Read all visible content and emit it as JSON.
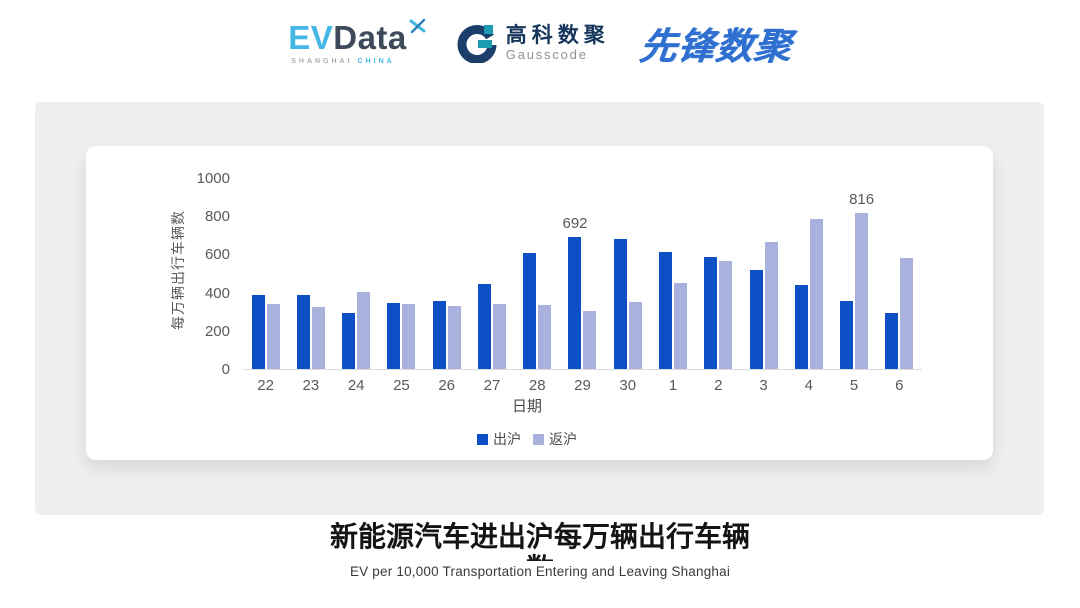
{
  "header": {
    "evdata": {
      "ev": "EV",
      "data": "Data",
      "sub1": "SHANGHAI",
      "sub2": "CHINA"
    },
    "gausscode": {
      "cn": "高科数聚",
      "en": "Gausscode"
    },
    "xianfeng": {
      "text": "先锋数聚"
    }
  },
  "chart_data": {
    "type": "bar",
    "title": "新能源汽车进出沪每万辆出行车辆数",
    "categories": [
      "22",
      "23",
      "24",
      "25",
      "26",
      "27",
      "28",
      "29",
      "30",
      "1",
      "2",
      "3",
      "4",
      "5",
      "6"
    ],
    "series": [
      {
        "name": "出沪",
        "color": "#0D4FC4",
        "values": [
          390,
          385,
          295,
          347,
          357,
          447,
          608,
          692,
          683,
          614,
          589,
          517,
          441,
          358,
          293
        ]
      },
      {
        "name": "返沪",
        "color": "#A9B2DC",
        "values": [
          343,
          326,
          405,
          339,
          328,
          342,
          334,
          306,
          349,
          451,
          566,
          665,
          788,
          816,
          583
        ]
      }
    ],
    "annotations": [
      {
        "series": "出沪",
        "category": "29",
        "text": "692"
      },
      {
        "series": "返沪",
        "category": "5",
        "text": "816"
      }
    ],
    "xlabel": "日期",
    "ylabel": "每万辆出行车辆数",
    "ylim": [
      0,
      1000
    ],
    "yticks": [
      0,
      200,
      400,
      600,
      800,
      1000
    ],
    "legend_position": "bottom",
    "grid": false
  },
  "footer": {
    "title_line1": "新能源汽车进出沪每万辆出行车辆",
    "title_line2": "数",
    "subtitle": "EV per 10,000 Transportation Entering and Leaving Shanghai"
  },
  "colors": {
    "bar_dark": "#0D4FC4",
    "bar_light": "#A9B2DC",
    "panel_bg": "#EFEFEF",
    "axis_line": "#DCDCDC",
    "tick_text": "#595959"
  }
}
